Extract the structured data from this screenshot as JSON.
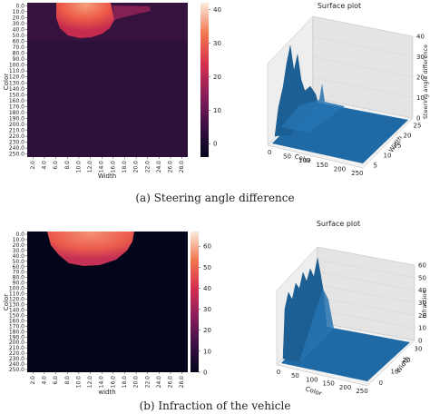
{
  "panels": [
    {
      "caption": "(a) Steering angle difference",
      "heatmap": {
        "xlabel": "Width",
        "ylabel": "Color"
      },
      "surface": {
        "title": "Surface plot",
        "xlabel": "Color",
        "ylabel": "Width",
        "zlabel": "Steering angle difference"
      }
    },
    {
      "caption": "(b) Infraction of the vehicle",
      "heatmap": {
        "xlabel": "width",
        "ylabel": "Color"
      },
      "surface": {
        "title": "Surface plot",
        "xlabel": "Color",
        "ylabel": "Width",
        "zlabel": "Infraction"
      }
    }
  ],
  "chart_data": [
    {
      "type": "heatmap",
      "x_ticks": [
        "2.0",
        "4.0",
        "6.0",
        "8.0",
        "10.0",
        "12.0",
        "14.0",
        "16.0",
        "18.0",
        "20.0",
        "22.0",
        "24.0",
        "26.0",
        "28.0"
      ],
      "y_ticks": [
        "0.0",
        "10.0",
        "20.0",
        "30.0",
        "40.0",
        "50.0",
        "60.0",
        "70.0",
        "80.0",
        "90.0",
        "100.0",
        "110.0",
        "120.0",
        "130.0",
        "140.0",
        "150.0",
        "160.0",
        "170.0",
        "180.0",
        "190.0",
        "200.0",
        "210.0",
        "220.0",
        "230.0",
        "240.0",
        "250.0"
      ],
      "xlabel": "Width",
      "ylabel": "Color",
      "colorbar": {
        "ticks": [
          0,
          10,
          20,
          30,
          40
        ],
        "range": [
          -4,
          42
        ]
      },
      "hot_region": {
        "width_range": [
          8,
          18
        ],
        "color_range": [
          0,
          60
        ],
        "peak": 42
      },
      "background_value": 0
    },
    {
      "type": "surface",
      "title": "Surface plot",
      "xlabel": "Color",
      "ylabel": "Width",
      "zlabel": "Steering angle difference",
      "x_ticks": [
        "0",
        "50",
        "100",
        "150",
        "200",
        "250"
      ],
      "y_ticks": [
        "5",
        "10",
        "15",
        "20",
        "25"
      ],
      "z_ticks": [
        "0",
        "10",
        "20",
        "30",
        "40"
      ],
      "zlim": [
        0,
        40
      ]
    },
    {
      "type": "heatmap",
      "x_ticks": [
        "2.0",
        "4.0",
        "6.0",
        "8.0",
        "10.0",
        "12.0",
        "14.0",
        "16.0",
        "18.0",
        "20.0",
        "22.0",
        "24.0",
        "26.0",
        "28.0"
      ],
      "y_ticks": [
        "0.0",
        "10.0",
        "20.0",
        "30.0",
        "40.0",
        "50.0",
        "60.0",
        "70.0",
        "80.0",
        "90.0",
        "100.0",
        "110.0",
        "120.0",
        "130.0",
        "140.0",
        "150.0",
        "160.0",
        "170.0",
        "180.0",
        "190.0",
        "200.0",
        "210.0",
        "220.0",
        "230.0",
        "240.0",
        "250.0"
      ],
      "xlabel": "width",
      "ylabel": "Color",
      "colorbar": {
        "ticks": [
          0,
          10,
          20,
          30,
          40,
          50,
          60
        ],
        "range": [
          0,
          67
        ]
      },
      "hot_region": {
        "width_range": [
          6,
          20
        ],
        "color_range": [
          0,
          50
        ],
        "peak": 65
      },
      "background_value": 0
    },
    {
      "type": "surface",
      "title": "Surface plot",
      "xlabel": "Color",
      "ylabel": "Width",
      "zlabel": "Infraction",
      "x_ticks": [
        "0",
        "50",
        "100",
        "150",
        "200",
        "250"
      ],
      "y_ticks": [
        "0",
        "10",
        "20",
        "30"
      ],
      "z_ticks": [
        "0",
        "10",
        "20",
        "30",
        "40",
        "50",
        "60"
      ],
      "zlim": [
        0,
        60
      ]
    }
  ]
}
